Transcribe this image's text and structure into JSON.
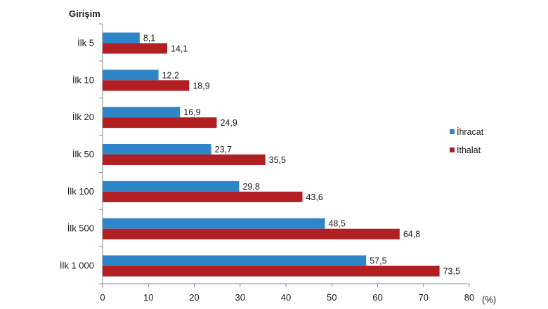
{
  "chart_data": {
    "type": "bar",
    "orientation": "horizontal",
    "y_title": "Girişim",
    "x_unit": "(%)",
    "categories": [
      "İlk 5",
      "İlk 10",
      "İlk 20",
      "İlk 50",
      "İlk 100",
      "İlk 500",
      "İlk 1 000"
    ],
    "series": [
      {
        "name": "İhracat",
        "color": "#2e86c9",
        "values": [
          8.1,
          12.2,
          16.9,
          23.7,
          29.8,
          48.5,
          57.5
        ],
        "labels": [
          "8,1",
          "12,2",
          "16,9",
          "23,7",
          "29,8",
          "48,5",
          "57,5"
        ]
      },
      {
        "name": "İthalat",
        "color": "#b11f23",
        "values": [
          14.1,
          18.9,
          24.9,
          35.5,
          43.6,
          64.8,
          73.5
        ],
        "labels": [
          "14,1",
          "18,9",
          "24,9",
          "35,5",
          "43,6",
          "64,8",
          "73,5"
        ]
      }
    ],
    "xlim": [
      0,
      80
    ],
    "xticks": [
      0,
      10,
      20,
      30,
      40,
      50,
      60,
      70,
      80
    ],
    "grid": false,
    "legend_position": "right"
  }
}
